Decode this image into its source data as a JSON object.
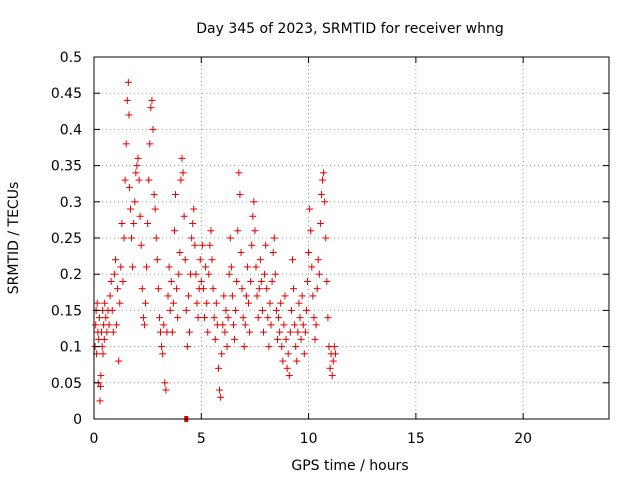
{
  "chart_data": {
    "type": "scatter",
    "title": "Day 345 of 2023, SRMTID for receiver whng",
    "xlabel": "GPS time / hours",
    "ylabel": "SRMTID / TECUs",
    "xlim": [
      0,
      24
    ],
    "ylim": [
      0,
      0.5
    ],
    "x_ticks": [
      0,
      5,
      10,
      15,
      20
    ],
    "y_ticks": [
      0,
      0.05,
      0.1,
      0.15,
      0.2,
      0.25,
      0.3,
      0.35,
      0.4,
      0.45,
      0.5
    ],
    "x_tick_labels": [
      "0",
      "5",
      "10",
      "15",
      "20"
    ],
    "y_tick_labels": [
      "0",
      "0.05",
      "0.1",
      "0.15",
      "0.2",
      "0.25",
      "0.3",
      "0.35",
      "0.4",
      "0.45",
      "0.5"
    ],
    "grid": true,
    "marker": "+",
    "color": "#e00000",
    "series": [
      {
        "name": "SRMTID",
        "points": [
          [
            0.05,
            0.1
          ],
          [
            0.08,
            0.13
          ],
          [
            0.1,
            0.15
          ],
          [
            0.12,
            0.09
          ],
          [
            0.15,
            0.16
          ],
          [
            0.18,
            0.12
          ],
          [
            0.2,
            0.05
          ],
          [
            0.22,
            0.11
          ],
          [
            0.25,
            0.14
          ],
          [
            0.28,
            0.025
          ],
          [
            0.3,
            0.045
          ],
          [
            0.32,
            0.06
          ],
          [
            0.35,
            0.12
          ],
          [
            0.38,
            0.1
          ],
          [
            0.4,
            0.15
          ],
          [
            0.42,
            0.09
          ],
          [
            0.45,
            0.13
          ],
          [
            0.48,
            0.11
          ],
          [
            0.5,
            0.16
          ],
          [
            0.55,
            0.14
          ],
          [
            0.6,
            0.12
          ],
          [
            0.65,
            0.15
          ],
          [
            0.7,
            0.13
          ],
          [
            0.75,
            0.17
          ],
          [
            0.8,
            0.19
          ],
          [
            0.85,
            0.15
          ],
          [
            0.9,
            0.12
          ],
          [
            0.95,
            0.2
          ],
          [
            1.0,
            0.22
          ],
          [
            1.05,
            0.13
          ],
          [
            1.1,
            0.18
          ],
          [
            1.15,
            0.08
          ],
          [
            1.2,
            0.16
          ],
          [
            1.25,
            0.21
          ],
          [
            1.3,
            0.27
          ],
          [
            1.35,
            0.19
          ],
          [
            1.4,
            0.25
          ],
          [
            1.45,
            0.33
          ],
          [
            1.5,
            0.38
          ],
          [
            1.55,
            0.44
          ],
          [
            1.6,
            0.465
          ],
          [
            1.63,
            0.42
          ],
          [
            1.65,
            0.32
          ],
          [
            1.7,
            0.29
          ],
          [
            1.75,
            0.25
          ],
          [
            1.8,
            0.21
          ],
          [
            1.85,
            0.27
          ],
          [
            1.9,
            0.3
          ],
          [
            1.95,
            0.34
          ],
          [
            2.0,
            0.35
          ],
          [
            2.05,
            0.36
          ],
          [
            2.1,
            0.33
          ],
          [
            2.15,
            0.28
          ],
          [
            2.2,
            0.24
          ],
          [
            2.25,
            0.18
          ],
          [
            2.3,
            0.14
          ],
          [
            2.35,
            0.13
          ],
          [
            2.4,
            0.16
          ],
          [
            2.45,
            0.21
          ],
          [
            2.5,
            0.27
          ],
          [
            2.55,
            0.33
          ],
          [
            2.6,
            0.38
          ],
          [
            2.65,
            0.43
          ],
          [
            2.7,
            0.44
          ],
          [
            2.75,
            0.4
          ],
          [
            2.8,
            0.31
          ],
          [
            2.85,
            0.29
          ],
          [
            2.9,
            0.25
          ],
          [
            2.95,
            0.22
          ],
          [
            3.0,
            0.18
          ],
          [
            3.05,
            0.14
          ],
          [
            3.1,
            0.12
          ],
          [
            3.15,
            0.1
          ],
          [
            3.2,
            0.09
          ],
          [
            3.25,
            0.13
          ],
          [
            3.3,
            0.05
          ],
          [
            3.35,
            0.04
          ],
          [
            3.4,
            0.12
          ],
          [
            3.45,
            0.17
          ],
          [
            3.5,
            0.21
          ],
          [
            3.55,
            0.15
          ],
          [
            3.6,
            0.19
          ],
          [
            3.65,
            0.12
          ],
          [
            3.7,
            0.16
          ],
          [
            3.75,
            0.26
          ],
          [
            3.8,
            0.31
          ],
          [
            3.85,
            0.18
          ],
          [
            3.9,
            0.14
          ],
          [
            3.95,
            0.2
          ],
          [
            4.0,
            0.23
          ],
          [
            4.05,
            0.33
          ],
          [
            4.1,
            0.36
          ],
          [
            4.15,
            0.34
          ],
          [
            4.2,
            0.28
          ],
          [
            4.25,
            0.22
          ],
          [
            4.3,
            0.15
          ],
          [
            4.35,
            0.1
          ],
          [
            4.4,
            0.17
          ],
          [
            4.45,
            0.12
          ],
          [
            4.5,
            0.2
          ],
          [
            4.55,
            0.25
          ],
          [
            4.6,
            0.27
          ],
          [
            4.65,
            0.29
          ],
          [
            4.7,
            0.24
          ],
          [
            4.75,
            0.2
          ],
          [
            4.8,
            0.16
          ],
          [
            4.85,
            0.14
          ],
          [
            4.9,
            0.18
          ],
          [
            4.95,
            0.22
          ],
          [
            5.0,
            0.19
          ],
          [
            5.05,
            0.24
          ],
          [
            5.1,
            0.18
          ],
          [
            5.15,
            0.14
          ],
          [
            5.2,
            0.21
          ],
          [
            5.25,
            0.16
          ],
          [
            5.3,
            0.12
          ],
          [
            5.35,
            0.2
          ],
          [
            5.4,
            0.24
          ],
          [
            5.45,
            0.26
          ],
          [
            5.5,
            0.22
          ],
          [
            5.55,
            0.18
          ],
          [
            5.6,
            0.14
          ],
          [
            5.65,
            0.11
          ],
          [
            5.7,
            0.16
          ],
          [
            5.75,
            0.13
          ],
          [
            5.8,
            0.07
          ],
          [
            5.85,
            0.04
          ],
          [
            5.9,
            0.03
          ],
          [
            5.95,
            0.09
          ],
          [
            6.0,
            0.13
          ],
          [
            6.05,
            0.17
          ],
          [
            6.1,
            0.12
          ],
          [
            6.15,
            0.15
          ],
          [
            6.2,
            0.1
          ],
          [
            6.25,
            0.14
          ],
          [
            6.3,
            0.2
          ],
          [
            6.35,
            0.25
          ],
          [
            6.4,
            0.21
          ],
          [
            6.45,
            0.17
          ],
          [
            6.5,
            0.13
          ],
          [
            6.55,
            0.11
          ],
          [
            6.6,
            0.15
          ],
          [
            6.65,
            0.19
          ],
          [
            6.7,
            0.26
          ],
          [
            6.75,
            0.34
          ],
          [
            6.8,
            0.31
          ],
          [
            6.85,
            0.23
          ],
          [
            6.9,
            0.18
          ],
          [
            6.95,
            0.14
          ],
          [
            7.0,
            0.1
          ],
          [
            7.05,
            0.13
          ],
          [
            7.1,
            0.17
          ],
          [
            7.15,
            0.21
          ],
          [
            7.2,
            0.16
          ],
          [
            7.25,
            0.12
          ],
          [
            7.3,
            0.19
          ],
          [
            7.35,
            0.24
          ],
          [
            7.4,
            0.28
          ],
          [
            7.45,
            0.3
          ],
          [
            7.5,
            0.26
          ],
          [
            7.55,
            0.21
          ],
          [
            7.6,
            0.17
          ],
          [
            7.65,
            0.14
          ],
          [
            7.7,
            0.18
          ],
          [
            7.75,
            0.22
          ],
          [
            7.8,
            0.19
          ],
          [
            7.85,
            0.15
          ],
          [
            7.9,
            0.12
          ],
          [
            7.95,
            0.2
          ],
          [
            8.0,
            0.24
          ],
          [
            8.05,
            0.18
          ],
          [
            8.1,
            0.14
          ],
          [
            8.15,
            0.1
          ],
          [
            8.2,
            0.16
          ],
          [
            8.25,
            0.13
          ],
          [
            8.3,
            0.19
          ],
          [
            8.35,
            0.23
          ],
          [
            8.4,
            0.25
          ],
          [
            8.45,
            0.2
          ],
          [
            8.5,
            0.15
          ],
          [
            8.55,
            0.11
          ],
          [
            8.6,
            0.14
          ],
          [
            8.65,
            0.12
          ],
          [
            8.7,
            0.16
          ],
          [
            8.75,
            0.1
          ],
          [
            8.8,
            0.08
          ],
          [
            8.85,
            0.13
          ],
          [
            8.9,
            0.17
          ],
          [
            8.95,
            0.11
          ],
          [
            9.0,
            0.07
          ],
          [
            9.05,
            0.09
          ],
          [
            9.1,
            0.06
          ],
          [
            9.15,
            0.12
          ],
          [
            9.2,
            0.15
          ],
          [
            9.25,
            0.22
          ],
          [
            9.3,
            0.18
          ],
          [
            9.35,
            0.13
          ],
          [
            9.4,
            0.1
          ],
          [
            9.45,
            0.08
          ],
          [
            9.5,
            0.12
          ],
          [
            9.55,
            0.16
          ],
          [
            9.6,
            0.14
          ],
          [
            9.65,
            0.11
          ],
          [
            9.7,
            0.17
          ],
          [
            9.75,
            0.13
          ],
          [
            9.8,
            0.09
          ],
          [
            9.85,
            0.12
          ],
          [
            9.9,
            0.15
          ],
          [
            9.95,
            0.19
          ],
          [
            10.0,
            0.23
          ],
          [
            10.05,
            0.29
          ],
          [
            10.1,
            0.26
          ],
          [
            10.15,
            0.21
          ],
          [
            10.2,
            0.17
          ],
          [
            10.25,
            0.14
          ],
          [
            10.3,
            0.11
          ],
          [
            10.35,
            0.13
          ],
          [
            10.4,
            0.18
          ],
          [
            10.45,
            0.22
          ],
          [
            10.5,
            0.2
          ],
          [
            10.55,
            0.27
          ],
          [
            10.6,
            0.31
          ],
          [
            10.65,
            0.33
          ],
          [
            10.7,
            0.34
          ],
          [
            10.75,
            0.3
          ],
          [
            10.8,
            0.25
          ],
          [
            10.85,
            0.19
          ],
          [
            10.9,
            0.14
          ],
          [
            10.95,
            0.1
          ],
          [
            11.0,
            0.07
          ],
          [
            11.05,
            0.09
          ],
          [
            11.1,
            0.06
          ],
          [
            11.15,
            0.08
          ],
          [
            11.2,
            0.1
          ],
          [
            11.25,
            0.09
          ]
        ]
      }
    ],
    "no_data_points": [
      [
        4.3,
        0.0
      ]
    ]
  }
}
